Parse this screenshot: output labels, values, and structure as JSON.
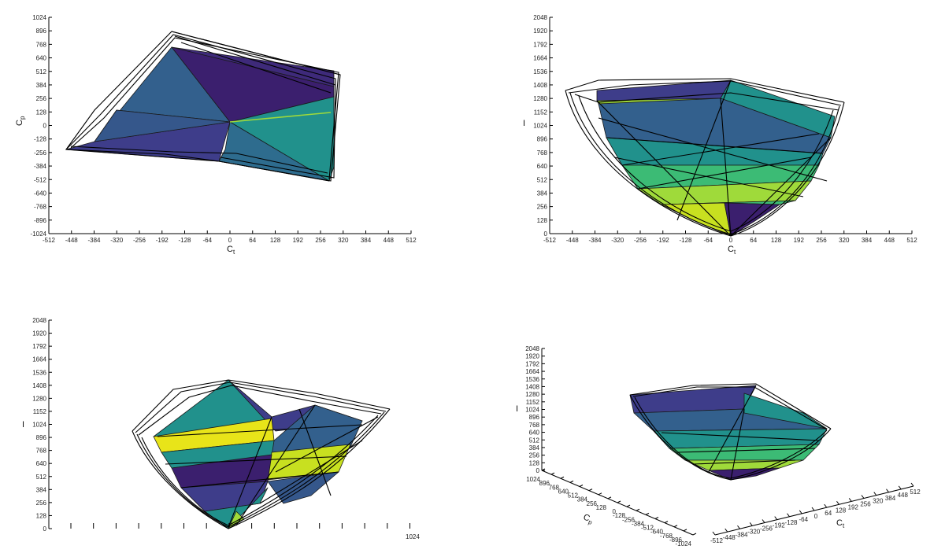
{
  "colors": {
    "deep_purple": "#3b1f6e",
    "indigo": "#3e3d8a",
    "blue": "#33608d",
    "teal": "#21918c",
    "green": "#3cbb75",
    "lime": "#9fda3a",
    "yellow": "#e8e419",
    "wire": "#000000"
  },
  "chart_data": [
    {
      "type": "polyhedron-projection",
      "view": "top (Ct vs Cp)",
      "xlabel_main": "C",
      "xlabel_sub": "t",
      "ylabel_main": "C",
      "ylabel_sub": "p",
      "xlim": [
        -512,
        512
      ],
      "ylim": [
        -1024,
        1024
      ],
      "xticks": [
        "-512",
        "-448",
        "-384",
        "-320",
        "-256",
        "-192",
        "-128",
        "-64",
        "0",
        "64",
        "128",
        "192",
        "256",
        "320",
        "384",
        "448",
        "512"
      ],
      "yticks": [
        "1024",
        "896",
        "768",
        "640",
        "512",
        "384",
        "256",
        "128",
        "0",
        "-128",
        "-256",
        "-384",
        "-512",
        "-640",
        "-768",
        "-896",
        "-1024"
      ]
    },
    {
      "type": "polyhedron-projection",
      "view": "side (Ct vs I)",
      "xlabel_main": "C",
      "xlabel_sub": "t",
      "ylabel": "I",
      "xlim": [
        -512,
        512
      ],
      "ylim": [
        0,
        2048
      ],
      "xticks": [
        "-512",
        "-448",
        "-384",
        "-320",
        "-256",
        "-192",
        "-128",
        "-64",
        "0",
        "64",
        "128",
        "192",
        "256",
        "320",
        "384",
        "448",
        "512"
      ],
      "yticks": [
        "2048",
        "1920",
        "1792",
        "1664",
        "1536",
        "1408",
        "1280",
        "1152",
        "1024",
        "896",
        "768",
        "640",
        "512",
        "384",
        "256",
        "128",
        "0"
      ]
    },
    {
      "type": "polyhedron-projection",
      "view": "side (Cp vs I)",
      "ylabel": "I",
      "ylim": [
        0,
        2048
      ],
      "xticks": [
        "1024"
      ],
      "yticks": [
        "2048",
        "1920",
        "1792",
        "1664",
        "1536",
        "1408",
        "1280",
        "1152",
        "1024",
        "896",
        "768",
        "640",
        "512",
        "384",
        "256",
        "128",
        "0"
      ]
    },
    {
      "type": "polyhedron-3d",
      "view": "isometric (Ct, Cp, I)",
      "xlabel_main": "C",
      "xlabel_sub": "t",
      "ylabel_main": "C",
      "ylabel_sub": "p",
      "zlabel": "I",
      "xticks": [
        "-512",
        "-448",
        "-384",
        "-320",
        "-256",
        "-192",
        "-128",
        "-64",
        "0",
        "64",
        "128",
        "192",
        "256",
        "320",
        "384",
        "448",
        "512"
      ],
      "yticks": [
        "1024",
        "896",
        "768",
        "640",
        "512",
        "384",
        "256",
        "128",
        "0",
        "-128",
        "-256",
        "-384",
        "-512",
        "-640",
        "-768",
        "-896",
        "-1024"
      ],
      "zticks": [
        "2048",
        "1920",
        "1792",
        "1664",
        "1536",
        "1408",
        "1280",
        "1152",
        "1024",
        "896",
        "768",
        "640",
        "512",
        "384",
        "256",
        "128",
        "0"
      ]
    }
  ]
}
